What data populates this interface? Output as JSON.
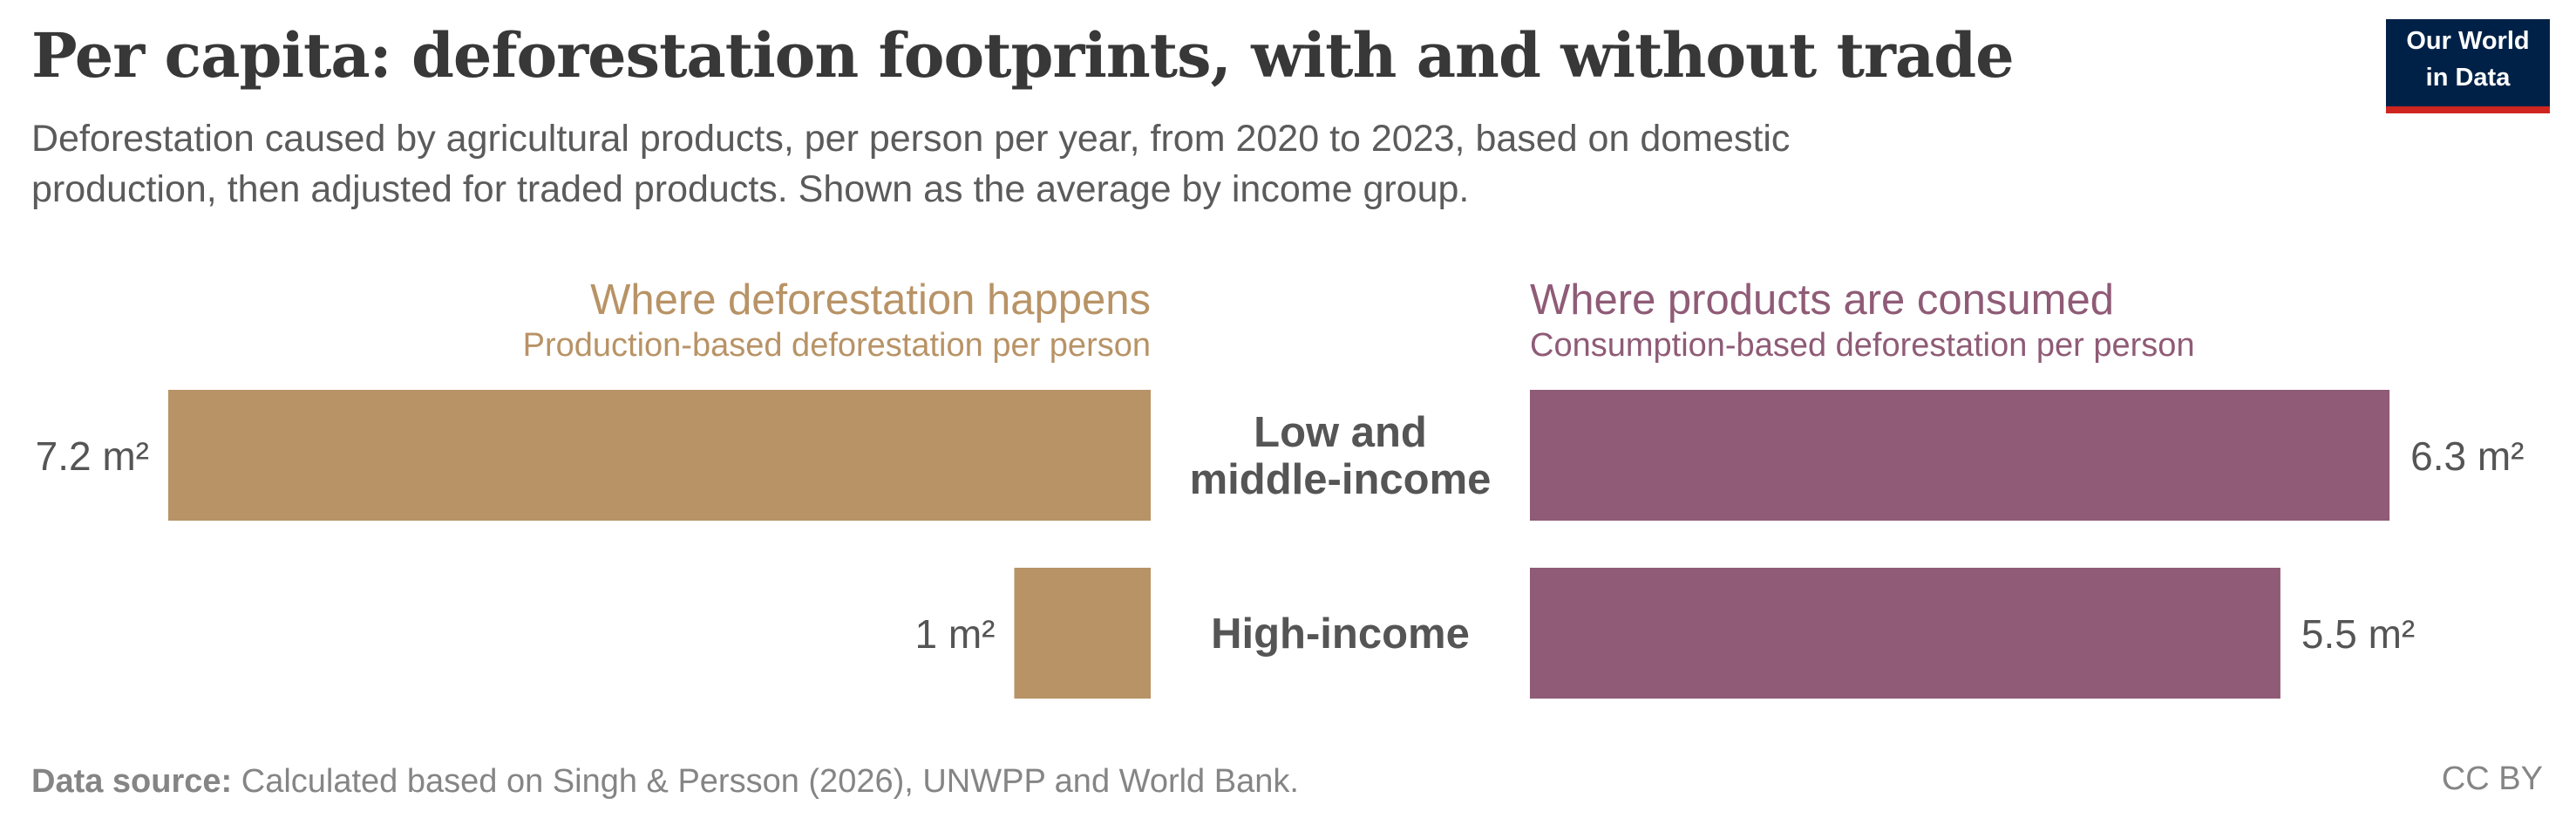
{
  "title": "Per capita: deforestation footprints, with and without trade",
  "subtitle": "Deforestation caused by agricultural products, per person per year, from 2020 to 2023, based on domestic production, then adjusted for traded products. Shown as the average by income group.",
  "logo": {
    "line1": "Our World",
    "line2": "in Data"
  },
  "footer": {
    "source_label": "Data source:",
    "source_text": "Calculated based on Singh & Persson (2026), UNWPP and World Bank."
  },
  "license": "CC BY",
  "chart_data": {
    "type": "bar",
    "orientation": "horizontal-butterfly",
    "unit": "m²",
    "categories": [
      "Low and middle-income",
      "High-income"
    ],
    "category_lines": [
      [
        "Low and",
        "middle-income"
      ],
      [
        "High-income"
      ]
    ],
    "series": [
      {
        "title": "Where deforestation happens",
        "subtitle": "Production-based deforestation per person",
        "color": "#b89366",
        "values": [
          7.2,
          1
        ],
        "labels": [
          "7.2 m²",
          "1 m²"
        ]
      },
      {
        "title": "Where products are consumed",
        "subtitle": "Consumption-based deforestation per person",
        "color": "#8f5b76",
        "values": [
          6.3,
          5.5
        ],
        "labels": [
          "6.3 m²",
          "5.5 m²"
        ]
      }
    ]
  }
}
